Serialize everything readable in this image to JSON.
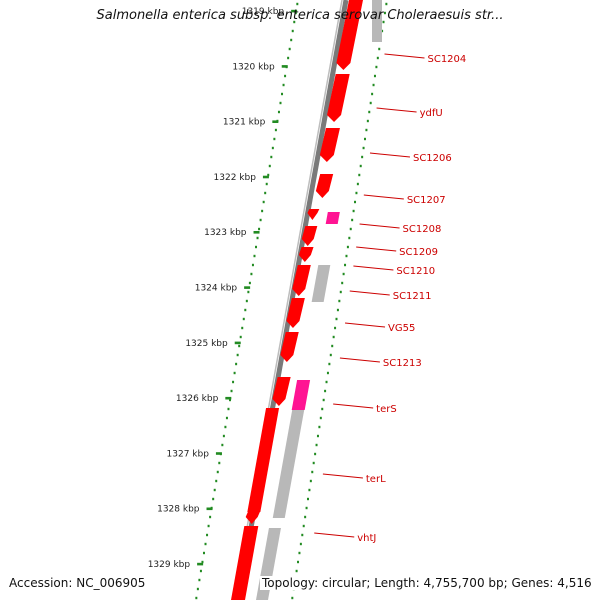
{
  "title": "Salmonella enterica subsp. enterica serovar Choleraesuis str...",
  "footer": {
    "accession": "Accession: NC_006905",
    "summary": "Topology: circular; Length: 4,755,700 bp; Genes: 4,516"
  },
  "colors": {
    "forward_gene": "#ff0000",
    "reverse_gene": "#ff0000",
    "highlight_gene": "#ff1493",
    "pseudo_gene": "#b8b8b8",
    "ruler_ticks": "#228b22",
    "backbone": "#808080",
    "label_text": "#cc0000"
  },
  "ruler": {
    "inner_ticks": [
      "1319 kbp",
      "1320 kbp",
      "1321 kbp",
      "1322 kbp",
      "1323 kbp",
      "1324 kbp",
      "1325 kbp",
      "1326 kbp",
      "1327 kbp",
      "1328 kbp",
      "1329 kbp"
    ]
  },
  "genes": [
    {
      "label": "SC1204"
    },
    {
      "label": "ydfU"
    },
    {
      "label": "SC1206"
    },
    {
      "label": "SC1207"
    },
    {
      "label": "SC1208"
    },
    {
      "label": "SC1209"
    },
    {
      "label": "SC1210"
    },
    {
      "label": "SC1211"
    },
    {
      "label": "VG55"
    },
    {
      "label": "SC1213"
    },
    {
      "label": "terS"
    },
    {
      "label": "terL"
    },
    {
      "label": "vhtJ"
    }
  ]
}
